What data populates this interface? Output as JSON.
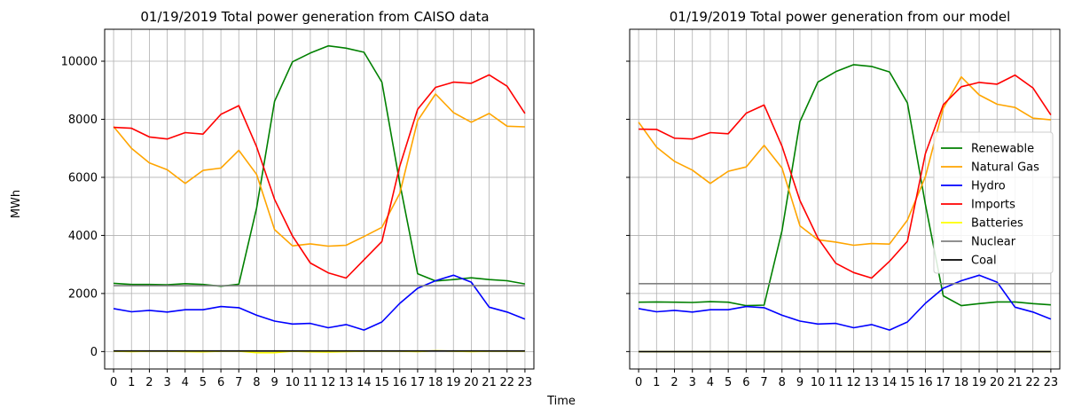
{
  "figure": {
    "xlabel": "Time",
    "ylabel": "MWh"
  },
  "legend": {
    "placement": "center-right of right panel",
    "entries": [
      "Renewable",
      "Natural Gas",
      "Hydro",
      "Imports",
      "Batteries",
      "Nuclear",
      "Coal"
    ]
  },
  "chart_data": [
    {
      "type": "line",
      "title": "01/19/2019 Total power generation from CAISO data",
      "xlabel": "",
      "ylabel": "",
      "x": [
        0,
        1,
        2,
        3,
        4,
        5,
        6,
        7,
        8,
        9,
        10,
        11,
        12,
        13,
        14,
        15,
        16,
        17,
        18,
        19,
        20,
        21,
        22,
        23
      ],
      "xlim": [
        -0.5,
        23.5
      ],
      "ylim": [
        -600,
        11100
      ],
      "yticks": [
        0,
        2000,
        4000,
        6000,
        8000,
        10000
      ],
      "grid": true,
      "series": [
        {
          "name": "Renewable",
          "color": "#008000",
          "values": [
            2350,
            2310,
            2310,
            2300,
            2340,
            2310,
            2250,
            2320,
            4950,
            8620,
            9980,
            10280,
            10530,
            10450,
            10310,
            9280,
            5800,
            2680,
            2430,
            2480,
            2540,
            2480,
            2440,
            2330
          ]
        },
        {
          "name": "Natural Gas",
          "color": "#ffa500",
          "values": [
            7750,
            7000,
            6500,
            6260,
            5790,
            6240,
            6320,
            6930,
            6100,
            4200,
            3640,
            3710,
            3630,
            3660,
            3960,
            4280,
            5450,
            7950,
            8870,
            8230,
            7900,
            8200,
            7760,
            7740
          ]
        },
        {
          "name": "Hydro",
          "color": "#0000ff",
          "values": [
            1480,
            1370,
            1420,
            1360,
            1440,
            1440,
            1550,
            1510,
            1250,
            1050,
            950,
            970,
            820,
            930,
            740,
            1020,
            1660,
            2180,
            2440,
            2630,
            2390,
            1530,
            1360,
            1120
          ]
        },
        {
          "name": "Imports",
          "color": "#ff0000",
          "values": [
            7720,
            7690,
            7390,
            7320,
            7540,
            7490,
            8170,
            8470,
            7050,
            5240,
            3980,
            3050,
            2710,
            2530,
            3160,
            3790,
            6390,
            8340,
            9100,
            9280,
            9240,
            9530,
            9140,
            8200
          ]
        },
        {
          "name": "Batteries",
          "color": "#ffff00",
          "values": [
            10,
            0,
            10,
            10,
            0,
            -10,
            10,
            10,
            -40,
            -40,
            10,
            -10,
            -20,
            0,
            10,
            10,
            10,
            0,
            30,
            10,
            0,
            10,
            10,
            10
          ]
        },
        {
          "name": "Nuclear",
          "color": "#808080",
          "values": [
            2270,
            2270,
            2270,
            2270,
            2270,
            2270,
            2270,
            2270,
            2270,
            2270,
            2270,
            2270,
            2270,
            2270,
            2270,
            2270,
            2270,
            2270,
            2270,
            2270,
            2270,
            2270,
            2270,
            2270
          ]
        },
        {
          "name": "Coal",
          "color": "#000000",
          "values": [
            20,
            20,
            20,
            20,
            20,
            20,
            20,
            20,
            20,
            20,
            20,
            20,
            20,
            20,
            20,
            20,
            20,
            20,
            20,
            20,
            20,
            20,
            20,
            20
          ]
        }
      ]
    },
    {
      "type": "line",
      "title": "01/19/2019 Total power generation from our model",
      "xlabel": "",
      "ylabel": "",
      "x": [
        0,
        1,
        2,
        3,
        4,
        5,
        6,
        7,
        8,
        9,
        10,
        11,
        12,
        13,
        14,
        15,
        16,
        17,
        18,
        19,
        20,
        21,
        22,
        23
      ],
      "xlim": [
        -0.5,
        23.5
      ],
      "ylim": [
        -600,
        11100
      ],
      "yticks": [
        0,
        2000,
        4000,
        6000,
        8000,
        10000
      ],
      "grid": true,
      "series": [
        {
          "name": "Renewable",
          "color": "#008000",
          "values": [
            1700,
            1710,
            1700,
            1690,
            1720,
            1700,
            1580,
            1600,
            4170,
            7920,
            9280,
            9640,
            9880,
            9820,
            9630,
            8560,
            5080,
            1920,
            1580,
            1650,
            1710,
            1710,
            1650,
            1610
          ]
        },
        {
          "name": "Natural Gas",
          "color": "#ffa500",
          "values": [
            7900,
            7040,
            6550,
            6250,
            5790,
            6210,
            6360,
            7100,
            6320,
            4330,
            3850,
            3770,
            3660,
            3720,
            3700,
            4530,
            6020,
            8380,
            9460,
            8840,
            8520,
            8410,
            8040,
            7980
          ]
        },
        {
          "name": "Hydro",
          "color": "#0000ff",
          "values": [
            1480,
            1370,
            1420,
            1360,
            1440,
            1440,
            1550,
            1510,
            1250,
            1050,
            950,
            970,
            820,
            930,
            740,
            1020,
            1660,
            2180,
            2440,
            2630,
            2390,
            1530,
            1360,
            1120
          ]
        },
        {
          "name": "Imports",
          "color": "#ff0000",
          "values": [
            7660,
            7650,
            7350,
            7320,
            7540,
            7500,
            8210,
            8490,
            7070,
            5200,
            3910,
            3040,
            2720,
            2530,
            3110,
            3800,
            6810,
            8500,
            9120,
            9270,
            9210,
            9520,
            9080,
            8150
          ]
        },
        {
          "name": "Batteries",
          "color": "#ffff00",
          "values": [
            0,
            0,
            0,
            0,
            0,
            0,
            0,
            0,
            0,
            0,
            0,
            0,
            0,
            0,
            0,
            0,
            0,
            0,
            0,
            0,
            0,
            0,
            0,
            0
          ]
        },
        {
          "name": "Nuclear",
          "color": "#808080",
          "values": [
            2340,
            2340,
            2340,
            2340,
            2340,
            2340,
            2340,
            2340,
            2340,
            2340,
            2340,
            2340,
            2340,
            2340,
            2340,
            2340,
            2340,
            2340,
            2340,
            2340,
            2340,
            2340,
            2340,
            2340
          ]
        },
        {
          "name": "Coal",
          "color": "#000000",
          "values": [
            0,
            0,
            0,
            0,
            0,
            0,
            0,
            0,
            0,
            0,
            0,
            0,
            0,
            0,
            0,
            0,
            0,
            0,
            0,
            0,
            0,
            0,
            0,
            0
          ]
        }
      ]
    }
  ]
}
